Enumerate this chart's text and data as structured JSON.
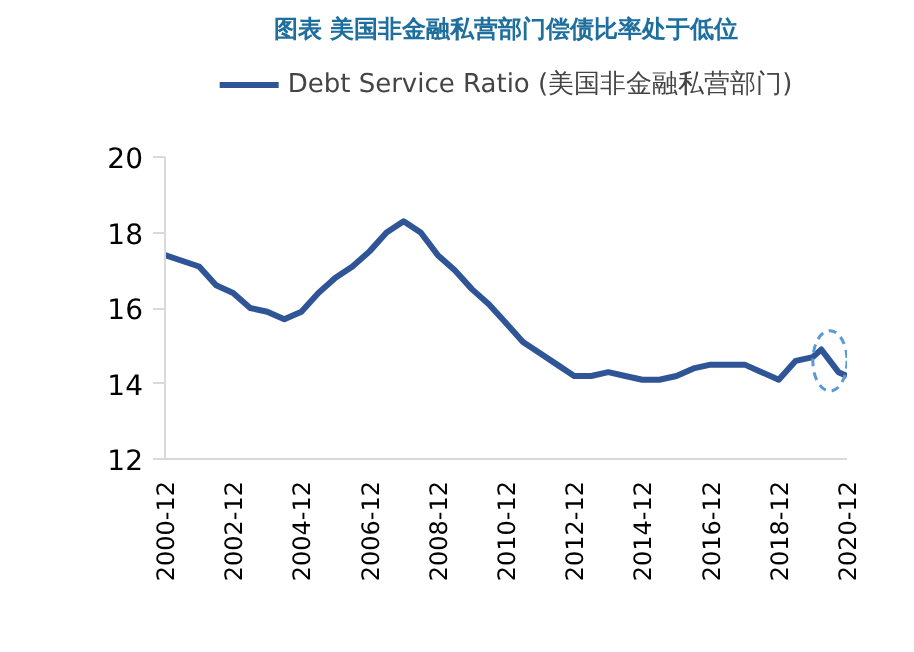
{
  "chart_data": {
    "type": "line",
    "title": "图表 美国非金融私营部门偿债比率处于低位",
    "x": [
      "2000-12",
      "2001-12",
      "2002-06",
      "2002-12",
      "2003-06",
      "2003-12",
      "2004-06",
      "2004-12",
      "2005-06",
      "2005-12",
      "2006-06",
      "2006-12",
      "2007-06",
      "2007-12",
      "2008-06",
      "2008-12",
      "2009-06",
      "2009-12",
      "2010-06",
      "2010-12",
      "2011-06",
      "2011-12",
      "2012-06",
      "2012-12",
      "2013-06",
      "2013-12",
      "2014-06",
      "2014-12",
      "2015-06",
      "2015-12",
      "2016-06",
      "2016-12",
      "2017-06",
      "2017-12",
      "2018-06",
      "2018-12",
      "2019-06",
      "2019-12",
      "2020-03",
      "2020-06",
      "2020-09",
      "2020-12"
    ],
    "series": [
      {
        "name": "Debt Service Ratio (美国非金融私营部门)",
        "color": "#2f5597",
        "values": [
          17.4,
          17.1,
          16.6,
          16.4,
          16.0,
          15.9,
          15.7,
          15.9,
          16.4,
          16.8,
          17.1,
          17.5,
          18.0,
          18.3,
          18.0,
          17.4,
          17.0,
          16.5,
          16.1,
          15.6,
          15.1,
          14.8,
          14.5,
          14.2,
          14.2,
          14.3,
          14.2,
          14.1,
          14.1,
          14.2,
          14.4,
          14.5,
          14.5,
          14.5,
          14.3,
          14.1,
          14.6,
          14.7,
          14.9,
          14.6,
          14.3,
          14.2
        ]
      }
    ],
    "xlim": [
      "2000-12",
      "2020-12"
    ],
    "ylim": [
      12,
      20
    ],
    "yticks": [
      12,
      14,
      16,
      18,
      20
    ],
    "xticks": [
      "2000-12",
      "2002-12",
      "2004-12",
      "2006-12",
      "2008-12",
      "2010-12",
      "2012-12",
      "2014-12",
      "2016-12",
      "2018-12",
      "2020-12"
    ],
    "grid": false,
    "legend": "top",
    "marker": "none",
    "line_style": "solid"
  }
}
